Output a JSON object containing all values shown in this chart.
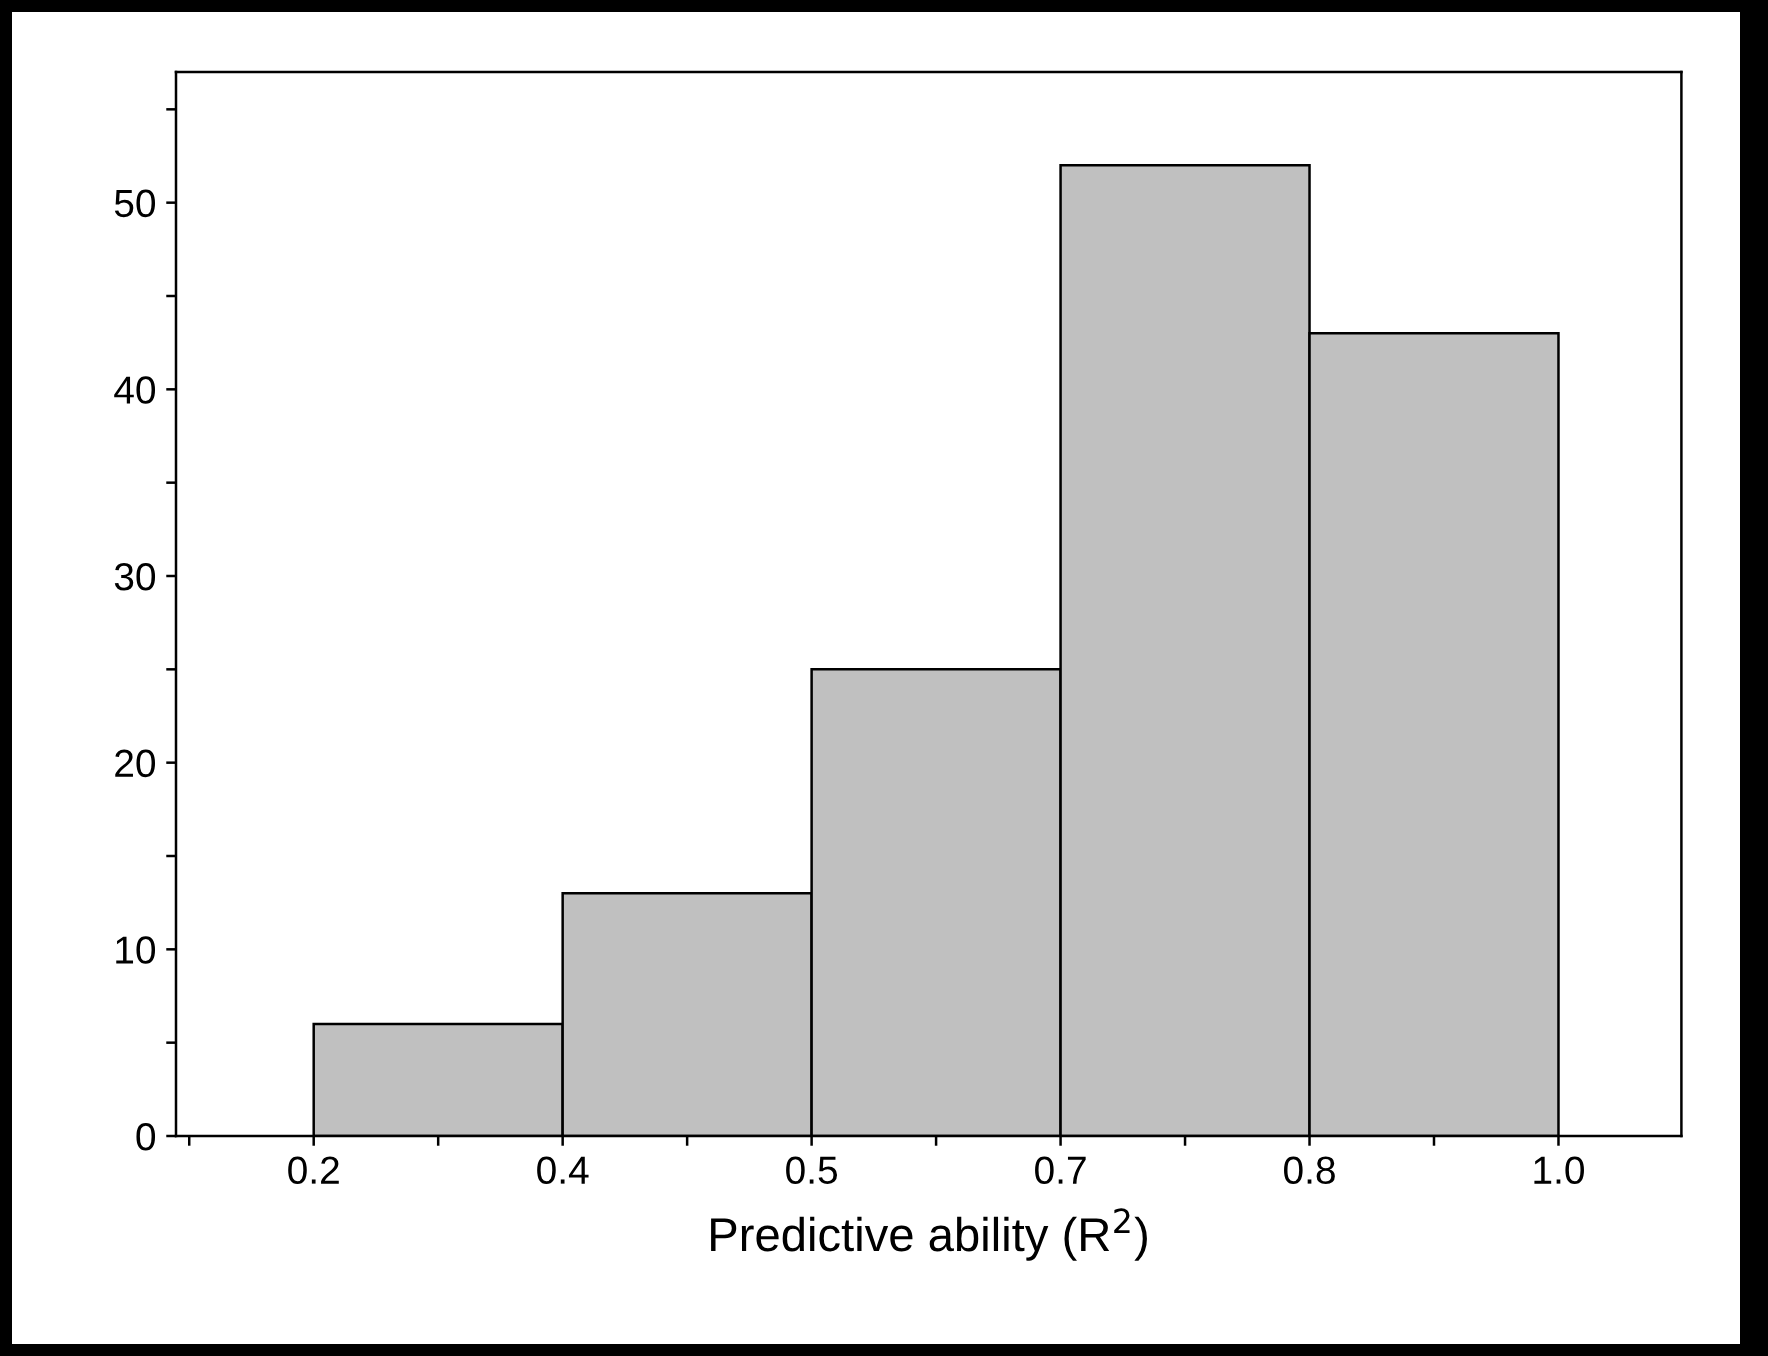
{
  "chart_data": {
    "type": "histogram",
    "xlabel": "Predictive ability (R$^{2}$)",
    "bins": [
      0.2,
      0.36,
      0.52,
      0.68,
      0.84,
      1.0
    ],
    "values": [
      6,
      13,
      25,
      52,
      43
    ],
    "color": "#c0c0c0",
    "xlim": [
      0.1115,
      1.079
    ],
    "ylim": [
      0,
      57
    ],
    "xticks": [
      {
        "value": 0.12,
        "label": null
      },
      {
        "value": 0.2,
        "label": "0.2"
      },
      {
        "value": 0.28,
        "label": null
      },
      {
        "value": 0.36,
        "label": "0.4"
      },
      {
        "value": 0.44,
        "label": null
      },
      {
        "value": 0.52,
        "label": "0.5"
      },
      {
        "value": 0.6,
        "label": null
      },
      {
        "value": 0.68,
        "label": "0.7"
      },
      {
        "value": 0.76,
        "label": null
      },
      {
        "value": 0.84,
        "label": "0.8"
      },
      {
        "value": 0.92,
        "label": null
      },
      {
        "value": 1.0,
        "label": "1.0"
      }
    ],
    "yticks": [
      0,
      {
        "value": 5,
        "label": null
      },
      10,
      {
        "value": 15,
        "label": null
      },
      20,
      {
        "value": 25,
        "label": null
      },
      30,
      {
        "value": 35,
        "label": null
      },
      40,
      {
        "value": 45,
        "label": null
      },
      50,
      {
        "value": 55,
        "label": null
      }
    ],
    "grid": false
  }
}
